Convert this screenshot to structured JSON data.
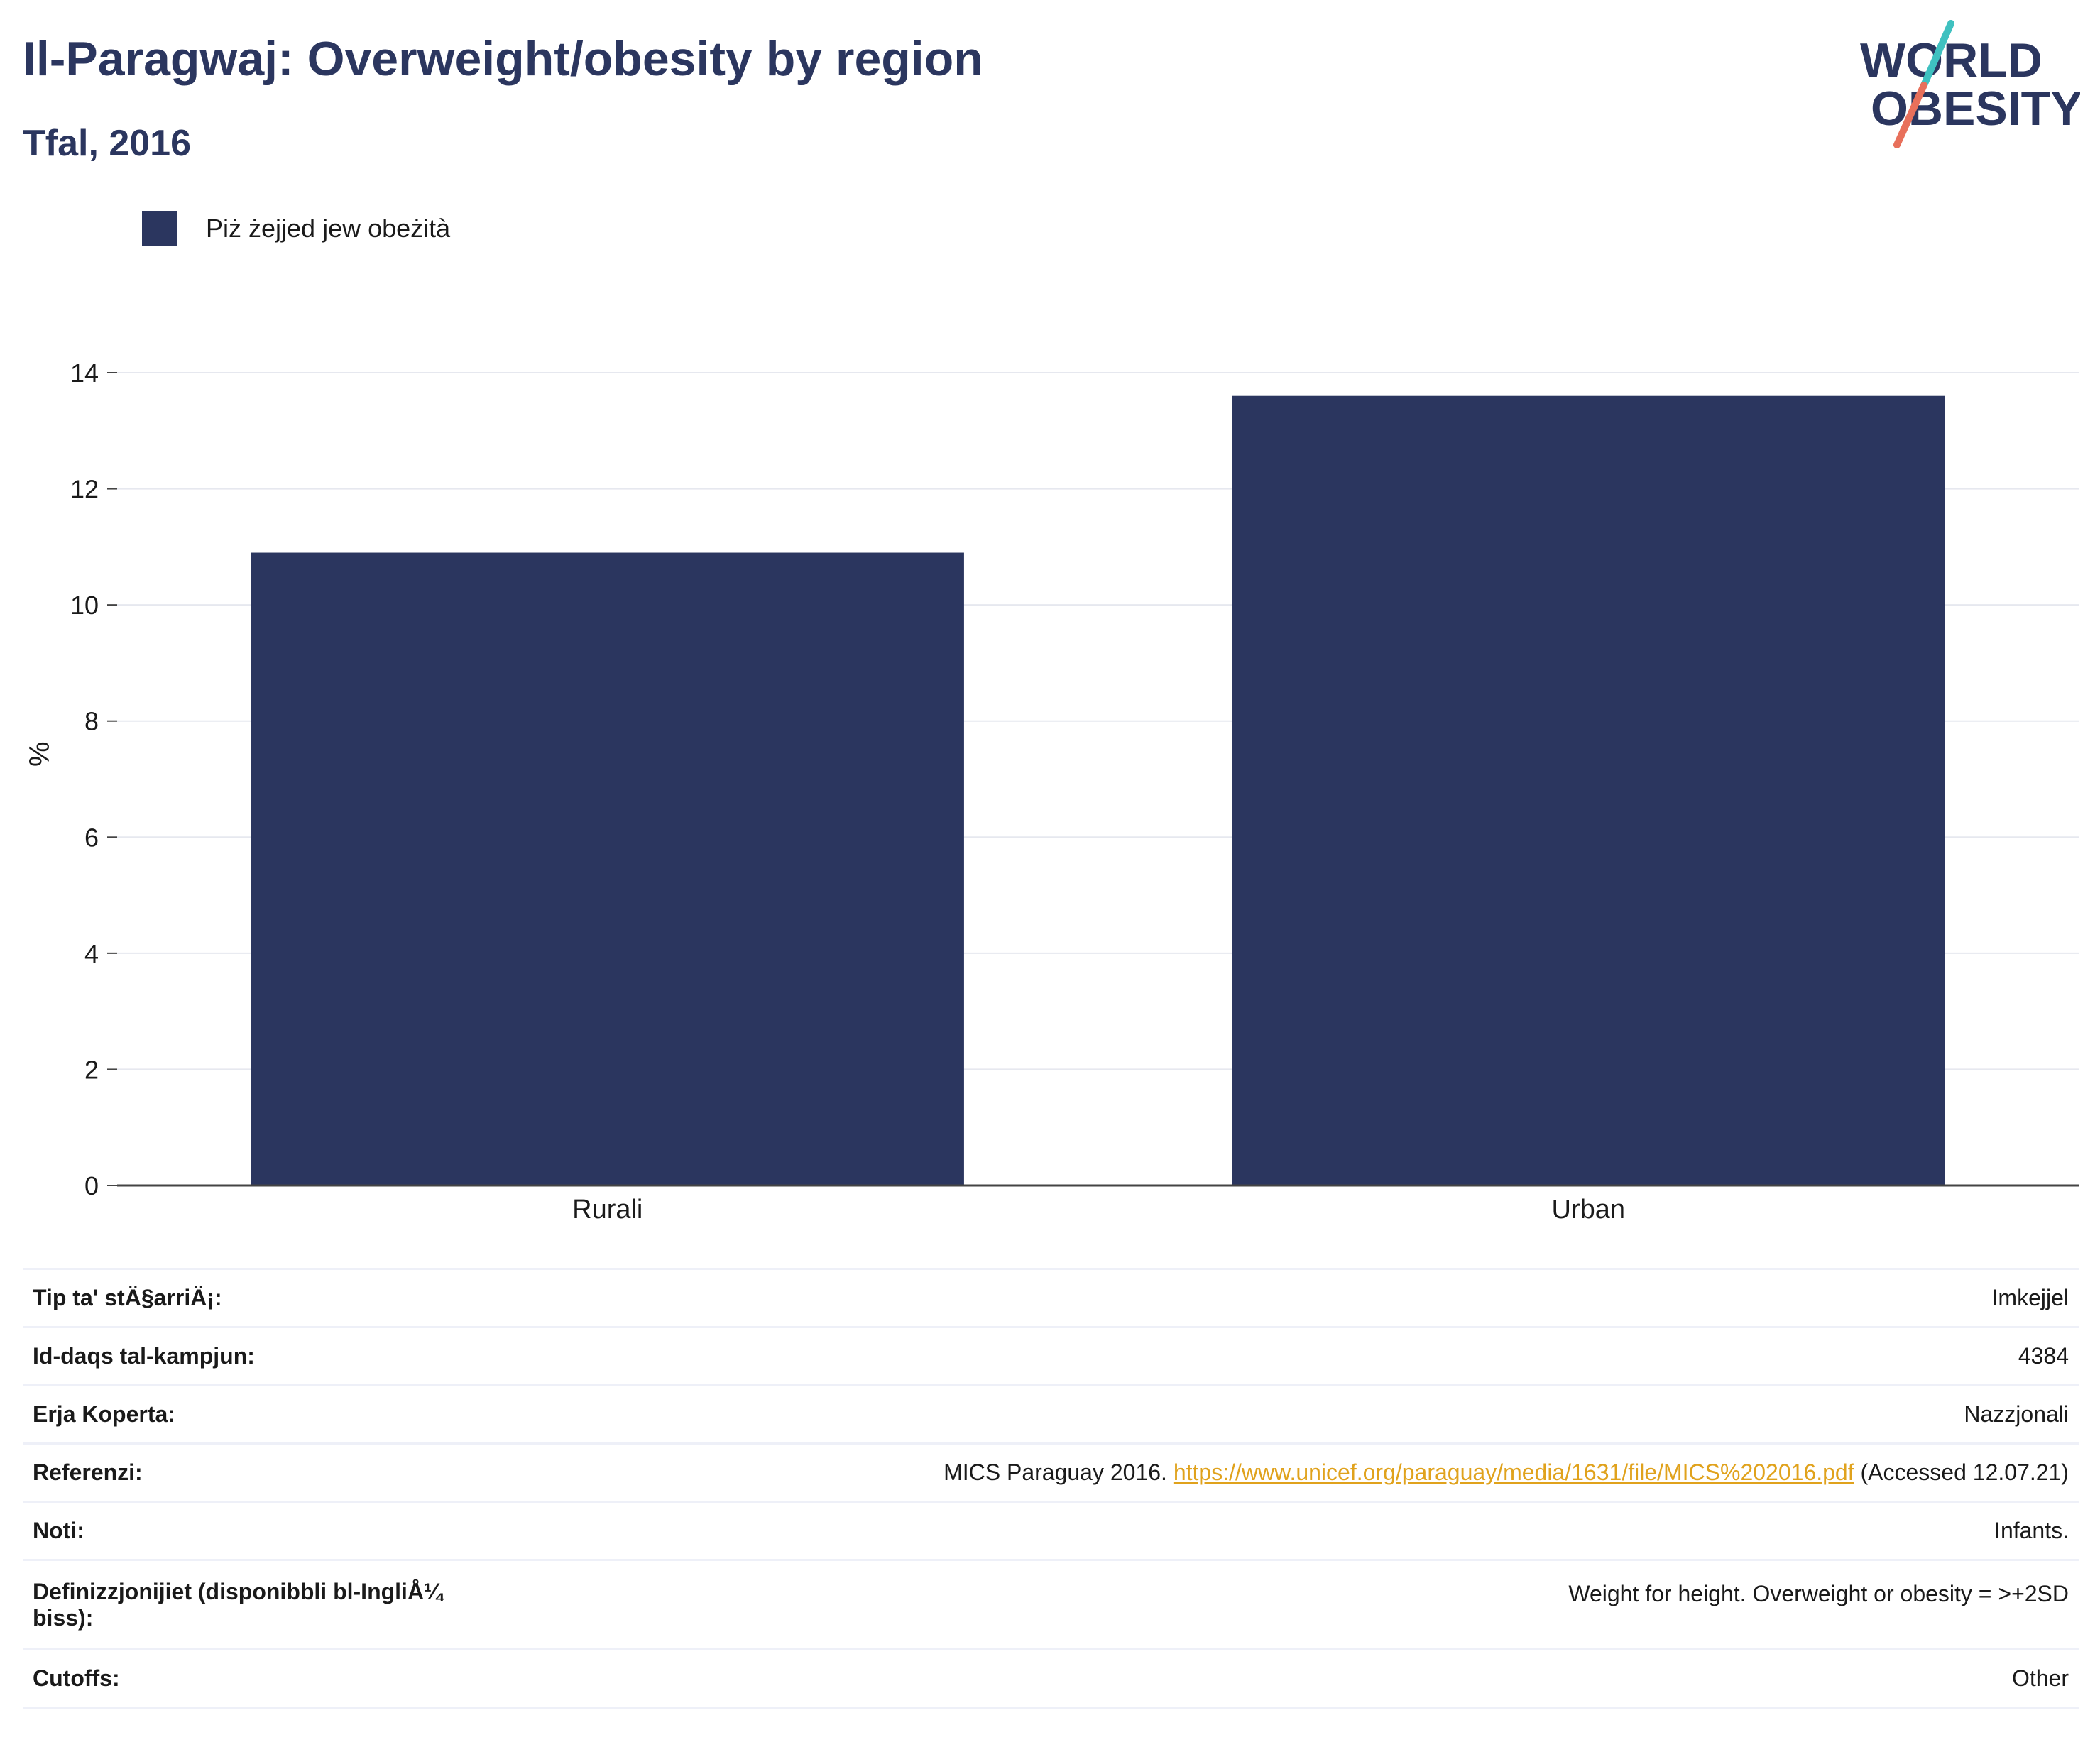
{
  "title": "Il-Paragwaj: Overweight/obesity by region",
  "subtitle": "Tfal, 2016",
  "logo": {
    "line1": "WORLD",
    "line2": "OBESITY",
    "colors": {
      "text": "#2b365f",
      "slash_top": "#3fc1c0",
      "slash_bottom": "#e8705b"
    }
  },
  "legend": {
    "label": "Piż żejjed jew obeżità",
    "color": "#2b365f"
  },
  "chart_data": {
    "type": "bar",
    "categories": [
      "Rurali",
      "Urban"
    ],
    "series": [
      {
        "name": "Piż żejjed jew obeżità",
        "values": [
          10.9,
          13.6
        ],
        "color": "#2b365f"
      }
    ],
    "title": "Il-Paragwaj: Overweight/obesity by region",
    "subtitle": "Tfal, 2016",
    "xlabel": "",
    "ylabel": "%",
    "ylim": [
      0,
      14
    ],
    "yticks": [
      0,
      2,
      4,
      6,
      8,
      10,
      12,
      14
    ],
    "grid": true,
    "legend_position": "top-left"
  },
  "info": {
    "rows": [
      {
        "key": "Tip ta' stÄ§arriÄ¡:",
        "value": "Imkejjel"
      },
      {
        "key": "Id-daqs tal-kampjun:",
        "value": "4384"
      },
      {
        "key": "Erja Koperta:",
        "value": "Nazzjonali"
      },
      {
        "key": "Referenzi:",
        "value_pre": "MICS Paraguay 2016. ",
        "value_link": "https://www.unicef.org/paraguay/media/1631/file/MICS%202016.pdf",
        "value_post": " (Accessed 12.07.21)"
      },
      {
        "key": "Noti:",
        "value": "Infants."
      },
      {
        "key_line1": "Definizzjonijiet (disponibbli bl-IngliÅ¼",
        "key_line2": "biss):",
        "value": "Weight for height. Overweight or obesity = >+2SD"
      },
      {
        "key": "Cutoffs:",
        "value": "Other"
      }
    ]
  }
}
